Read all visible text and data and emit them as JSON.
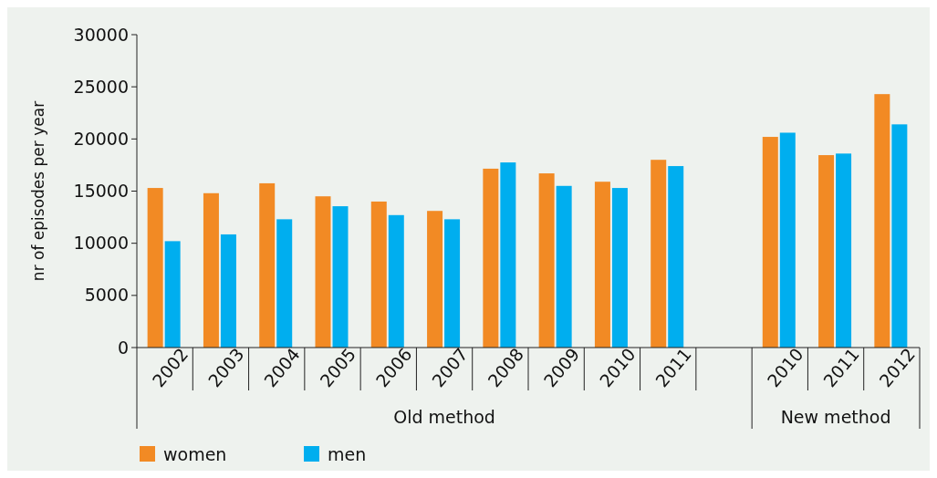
{
  "chart_data": {
    "type": "bar",
    "ylabel": "nr of episodes per year",
    "categories": [
      "2002",
      "2003",
      "2004",
      "2005",
      "2006",
      "2007",
      "2008",
      "2009",
      "2010",
      "2011",
      null,
      "2010",
      "2011",
      "2012"
    ],
    "series": [
      {
        "name": "women",
        "color": "#f28a24",
        "values": [
          15300,
          14800,
          15750,
          14500,
          14000,
          13100,
          17150,
          16700,
          15900,
          18000,
          null,
          20200,
          18450,
          24300
        ]
      },
      {
        "name": "men",
        "color": "#00aeef",
        "values": [
          10200,
          10850,
          12300,
          13550,
          12700,
          12300,
          17750,
          15500,
          15300,
          17400,
          null,
          20600,
          18600,
          21400
        ]
      }
    ],
    "ylim": [
      0,
      30000
    ],
    "yticks": [
      0,
      5000,
      10000,
      15000,
      20000,
      25000,
      30000
    ],
    "annotations": [
      "Old method",
      "New method"
    ],
    "grid": false,
    "legend": "bottom"
  }
}
